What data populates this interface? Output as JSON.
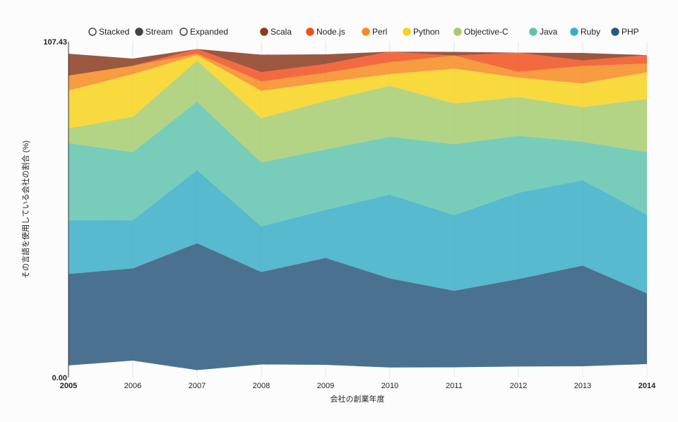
{
  "controls": {
    "options": [
      {
        "label": "Stacked",
        "selected": false
      },
      {
        "label": "Stream",
        "selected": true
      },
      {
        "label": "Expanded",
        "selected": false
      }
    ]
  },
  "chart_data": {
    "type": "area",
    "mode": "stream",
    "xlabel": "会社の創業年度",
    "ylabel": "その言語を使用している会社の割合 (%)",
    "x": [
      2005,
      2006,
      2007,
      2008,
      2009,
      2010,
      2011,
      2012,
      2013,
      2014
    ],
    "x_ticks": [
      "2005",
      "2006",
      "2007",
      "2008",
      "2009",
      "2010",
      "2011",
      "2012",
      "2013",
      "2014"
    ],
    "y_ticks": [
      "0.00",
      "107.43"
    ],
    "ylim": [
      0,
      107.43
    ],
    "grid": "vertical",
    "legend_position": "top-right",
    "series": [
      {
        "name": "Scala",
        "color": "#8b3a1f",
        "values": [
          7.0,
          2.3,
          0.0,
          5.6,
          3.1,
          0.0,
          1.2,
          0.0,
          2.4,
          0.0
        ]
      },
      {
        "name": "Node.js",
        "color": "#f2501e",
        "values": [
          0.0,
          0.0,
          1.5,
          3.0,
          2.8,
          3.4,
          0.0,
          6.2,
          1.8,
          2.7
        ]
      },
      {
        "name": "Perl",
        "color": "#f68b1f",
        "values": [
          4.8,
          2.7,
          0.4,
          3.0,
          3.0,
          3.8,
          4.2,
          1.8,
          5.6,
          2.8
        ]
      },
      {
        "name": "Python",
        "color": "#f7d21c",
        "values": [
          12.1,
          13.6,
          1.8,
          8.7,
          6.0,
          3.7,
          11.1,
          6.2,
          7.5,
          8.5
        ]
      },
      {
        "name": "Objective-C",
        "color": "#a6cc6e",
        "values": [
          4.7,
          11.3,
          13.1,
          14.2,
          15.5,
          16.3,
          13.0,
          12.4,
          11.1,
          17.0
        ]
      },
      {
        "name": "Java",
        "color": "#5fc4ae",
        "values": [
          24.6,
          21.8,
          21.9,
          20.4,
          19.3,
          18.5,
          22.7,
          18.2,
          12.3,
          20.0
        ]
      },
      {
        "name": "Ruby",
        "color": "#3aaec6",
        "values": [
          17.2,
          15.4,
          23.4,
          14.6,
          15.4,
          26.8,
          24.2,
          27.6,
          27.3,
          25.2
        ]
      },
      {
        "name": "PHP",
        "color": "#2b587e",
        "values": [
          29.3,
          29.5,
          40.6,
          29.6,
          34.2,
          28.5,
          24.5,
          28.0,
          32.2,
          22.6
        ]
      }
    ]
  }
}
